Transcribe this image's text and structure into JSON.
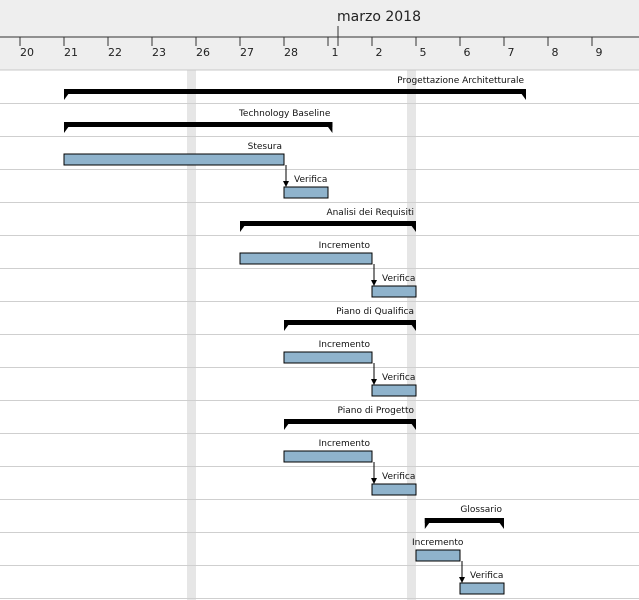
{
  "header": {
    "month_label": "marzo 2018",
    "days": [
      {
        "label": "20",
        "day": -1
      },
      {
        "label": "21",
        "day": 0
      },
      {
        "label": "22",
        "day": 1
      },
      {
        "label": "23",
        "day": 2
      },
      {
        "label": "26",
        "day": 3
      },
      {
        "label": "27",
        "day": 4
      },
      {
        "label": "28",
        "day": 5
      },
      {
        "label": "1",
        "day": 6
      },
      {
        "label": "2",
        "day": 7
      },
      {
        "label": "5",
        "day": 8
      },
      {
        "label": "6",
        "day": 9
      },
      {
        "label": "7",
        "day": 10
      },
      {
        "label": "8",
        "day": 11
      },
      {
        "label": "9",
        "day": 12
      }
    ]
  },
  "colors": {
    "task_fill": "#8fb3cc",
    "summary": "#000000",
    "weekend_band": "#e6e6e6",
    "header_bg": "#eeeeee"
  },
  "tasks": [
    {
      "name": "Progettazione Architetturale",
      "type": "summary",
      "start": 0,
      "end": 10.5,
      "label_align": "end"
    },
    {
      "name": "Technology Baseline",
      "type": "summary",
      "start": 0,
      "end": 6.1,
      "label_align": "end"
    },
    {
      "name": "Stesura",
      "type": "task",
      "start": 0,
      "end": 5,
      "label_align": "end"
    },
    {
      "name": "Verifica",
      "type": "task",
      "start": 5,
      "end": 6,
      "label_align": "start",
      "dep": true
    },
    {
      "name": "Analisi dei Requisiti",
      "type": "summary",
      "start": 4,
      "end": 8,
      "label_align": "end"
    },
    {
      "name": "Incremento",
      "type": "task",
      "start": 4,
      "end": 7,
      "label_align": "end"
    },
    {
      "name": "Verifica",
      "type": "task",
      "start": 7,
      "end": 8,
      "label_align": "start",
      "dep": true
    },
    {
      "name": "Piano di Qualifica",
      "type": "summary",
      "start": 5,
      "end": 8,
      "label_align": "end"
    },
    {
      "name": "Incremento",
      "type": "task",
      "start": 5,
      "end": 7,
      "label_align": "end"
    },
    {
      "name": "Verifica",
      "type": "task",
      "start": 7,
      "end": 8,
      "label_align": "start",
      "dep": true
    },
    {
      "name": "Piano di Progetto",
      "type": "summary",
      "start": 5,
      "end": 8,
      "label_align": "end"
    },
    {
      "name": "Incremento",
      "type": "task",
      "start": 5,
      "end": 7,
      "label_align": "end"
    },
    {
      "name": "Verifica",
      "type": "task",
      "start": 7,
      "end": 8,
      "label_align": "start",
      "dep": true
    },
    {
      "name": "Glossario",
      "type": "summary",
      "start": 8.2,
      "end": 10,
      "label_align": "end"
    },
    {
      "name": "Incremento",
      "type": "task",
      "start": 8,
      "end": 9,
      "label_align": "start"
    },
    {
      "name": "Verifica",
      "type": "task",
      "start": 9,
      "end": 10,
      "label_align": "start",
      "dep": true
    }
  ]
}
